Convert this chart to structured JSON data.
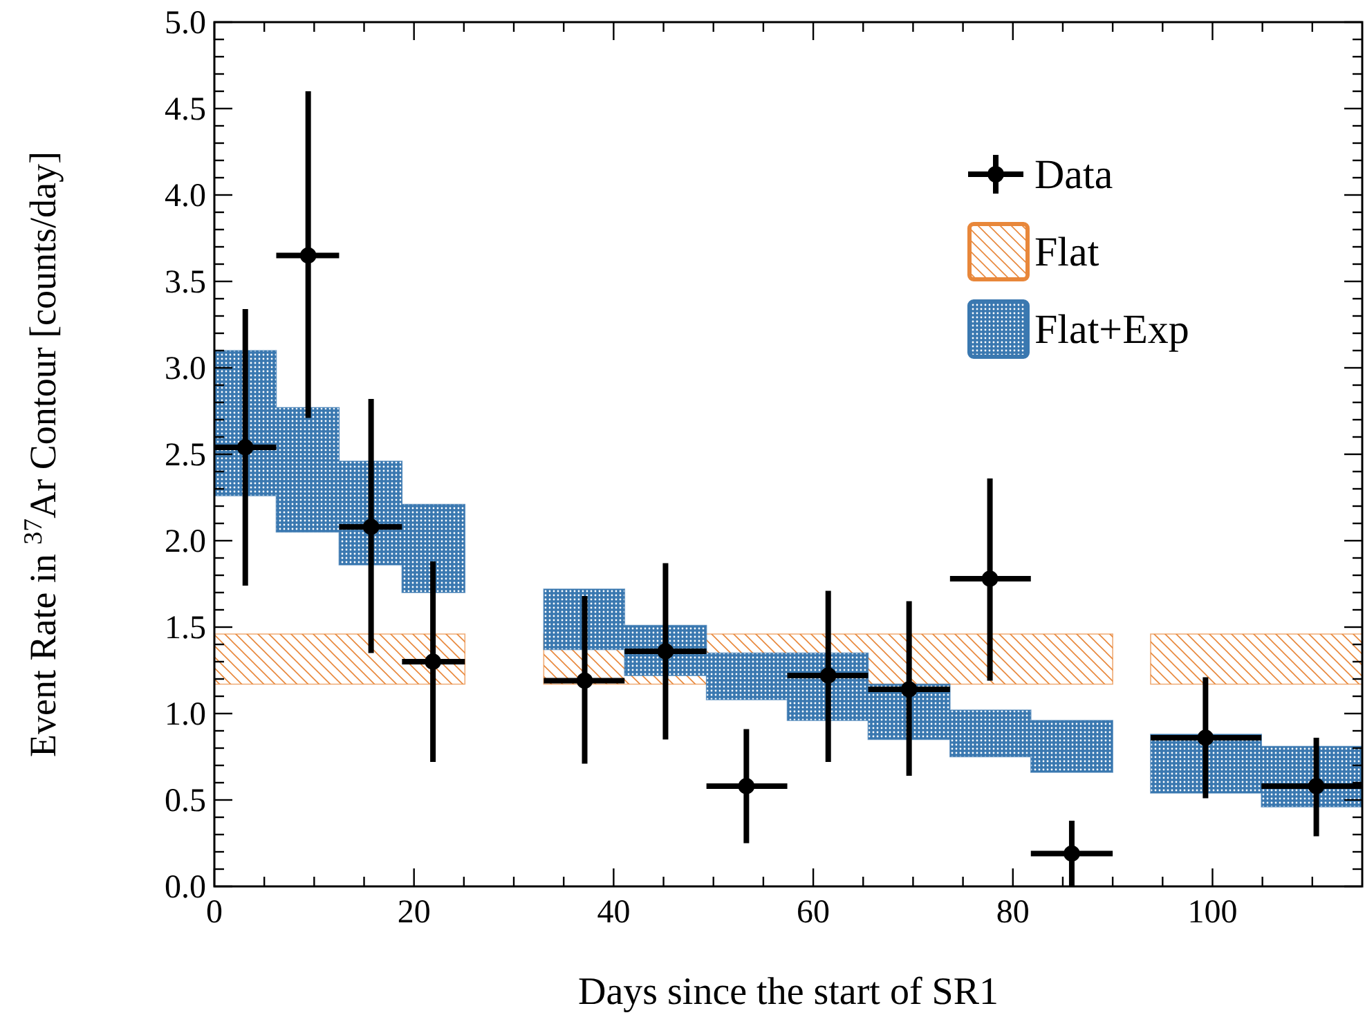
{
  "chart_data": {
    "type": "scatter",
    "xlabel": "Days since the start of SR1",
    "ylabel": "Event Rate in $^{37}$Ar Contour [counts/day]",
    "xlim": [
      0,
      115
    ],
    "ylim": [
      0,
      5
    ],
    "xticks": [
      0,
      {
        "value": 5,
        "label": null
      },
      {
        "value": 10,
        "label": null
      },
      {
        "value": 15,
        "label": null
      },
      20,
      {
        "value": 25,
        "label": null
      },
      {
        "value": 30,
        "label": null
      },
      {
        "value": 35,
        "label": null
      },
      40,
      {
        "value": 45,
        "label": null
      },
      {
        "value": 50,
        "label": null
      },
      {
        "value": 55,
        "label": null
      },
      60,
      {
        "value": 65,
        "label": null
      },
      {
        "value": 70,
        "label": null
      },
      {
        "value": 75,
        "label": null
      },
      80,
      {
        "value": 85,
        "label": null
      },
      {
        "value": 90,
        "label": null
      },
      {
        "value": 95,
        "label": null
      },
      100,
      {
        "value": 105,
        "label": null
      },
      {
        "value": 110,
        "label": null
      }
    ],
    "yticks": [
      {
        "value": 0,
        "label": "0.0"
      },
      {
        "value": 0.1,
        "label": null
      },
      {
        "value": 0.2,
        "label": null
      },
      {
        "value": 0.3,
        "label": null
      },
      {
        "value": 0.4,
        "label": null
      },
      0.5,
      {
        "value": 0.6,
        "label": null
      },
      {
        "value": 0.7,
        "label": null
      },
      {
        "value": 0.8,
        "label": null
      },
      {
        "value": 0.9,
        "label": null
      },
      {
        "value": 1,
        "label": "1.0"
      },
      {
        "value": 1.1,
        "label": null
      },
      {
        "value": 1.2,
        "label": null
      },
      {
        "value": 1.3,
        "label": null
      },
      {
        "value": 1.4,
        "label": null
      },
      1.5,
      {
        "value": 1.6,
        "label": null
      },
      {
        "value": 1.7,
        "label": null
      },
      {
        "value": 1.8,
        "label": null
      },
      {
        "value": 1.9,
        "label": null
      },
      {
        "value": 2,
        "label": "2.0"
      },
      {
        "value": 2.1,
        "label": null
      },
      {
        "value": 2.2,
        "label": null
      },
      {
        "value": 2.3,
        "label": null
      },
      {
        "value": 2.4,
        "label": null
      },
      2.5,
      {
        "value": 2.6,
        "label": null
      },
      {
        "value": 2.7,
        "label": null
      },
      {
        "value": 2.8,
        "label": null
      },
      {
        "value": 2.9,
        "label": null
      },
      {
        "value": 3,
        "label": "3.0"
      },
      {
        "value": 3.1,
        "label": null
      },
      {
        "value": 3.2,
        "label": null
      },
      {
        "value": 3.3,
        "label": null
      },
      {
        "value": 3.4,
        "label": null
      },
      3.5,
      {
        "value": 3.6,
        "label": null
      },
      {
        "value": 3.7,
        "label": null
      },
      {
        "value": 3.8,
        "label": null
      },
      {
        "value": 3.9,
        "label": null
      },
      {
        "value": 4,
        "label": "4.0"
      },
      {
        "value": 4.1,
        "label": null
      },
      {
        "value": 4.2,
        "label": null
      },
      {
        "value": 4.3,
        "label": null
      },
      {
        "value": 4.4,
        "label": null
      },
      4.5,
      {
        "value": 4.6,
        "label": null
      },
      {
        "value": 4.7,
        "label": null
      },
      {
        "value": 4.8,
        "label": null
      },
      {
        "value": 4.9,
        "label": null
      },
      {
        "value": 5,
        "label": "5.0"
      }
    ],
    "grid": false,
    "legend": "top right",
    "series": [
      {
        "name": "Flat",
        "type": "area",
        "color": "#e8873a",
        "x": [
          0,
          25.1,
          29,
          33,
          90,
          92,
          93.8,
          115
        ],
        "values": [
          null,
          null,
          null,
          null,
          null,
          null,
          null,
          null
        ],
        "lower": [
          1.17,
          1.17,
          null,
          1.17,
          1.17,
          null,
          1.17,
          1.17
        ],
        "upper": [
          1.46,
          1.46,
          null,
          1.46,
          1.46,
          null,
          1.46,
          1.46
        ]
      },
      {
        "name": "Flat+Exp",
        "type": "area",
        "color": "#3a78b0",
        "x": [
          0,
          6.2,
          6.2,
          12.5,
          12.5,
          18.8,
          18.8,
          25.1,
          29,
          33,
          41.1,
          41.1,
          49.3,
          49.3,
          57.4,
          57.4,
          65.5,
          65.5,
          73.7,
          73.7,
          81.8,
          81.8,
          90,
          92,
          93.8,
          104.9,
          104.9,
          115
        ],
        "lower": [
          2.26,
          2.26,
          2.05,
          2.05,
          1.86,
          1.86,
          1.7,
          1.7,
          null,
          1.37,
          1.37,
          1.22,
          1.22,
          1.08,
          1.08,
          0.96,
          0.96,
          0.85,
          0.85,
          0.75,
          0.75,
          0.66,
          0.66,
          null,
          0.54,
          0.54,
          0.46,
          0.46
        ],
        "values": [
          null,
          null,
          null,
          null,
          null,
          null,
          null,
          null,
          null,
          null,
          null,
          null,
          null,
          null,
          null,
          null,
          null,
          null,
          null,
          null,
          null,
          null,
          null,
          null,
          null,
          null,
          null,
          null
        ],
        "upper": [
          3.1,
          3.1,
          2.77,
          2.77,
          2.46,
          2.46,
          2.21,
          2.21,
          null,
          1.72,
          1.72,
          1.51,
          1.51,
          1.35,
          1.35,
          1.35,
          1.35,
          1.17,
          1.17,
          1.02,
          1.02,
          0.96,
          0.96,
          null,
          0.88,
          0.88,
          0.81,
          0.81
        ]
      },
      {
        "name": "Data",
        "type": "scatter",
        "marker": "circle",
        "color": "#000000",
        "x": [
          3.1,
          9.4,
          15.7,
          21.9,
          37.1,
          45.2,
          53.3,
          61.5,
          69.6,
          77.7,
          85.9,
          99.3,
          110.4
        ],
        "values": [
          2.54,
          3.65,
          2.08,
          1.3,
          1.19,
          1.36,
          0.58,
          1.22,
          1.14,
          1.78,
          0.19,
          0.86,
          0.58
        ],
        "errors": [
          [
            1.74,
            3.34
          ],
          [
            2.71,
            4.6
          ],
          [
            1.35,
            2.82
          ],
          [
            0.72,
            1.88
          ],
          [
            0.71,
            1.68
          ],
          [
            0.85,
            1.87
          ],
          [
            0.25,
            0.91
          ],
          [
            0.72,
            1.71
          ],
          [
            0.64,
            1.65
          ],
          [
            1.19,
            2.36
          ],
          [
            0,
            0.38
          ],
          [
            0.51,
            1.21
          ],
          [
            0.29,
            0.86
          ]
        ],
        "xerrors": [
          [
            0,
            6.2
          ],
          [
            6.2,
            12.5
          ],
          [
            12.5,
            18.8
          ],
          [
            18.8,
            25.1
          ],
          [
            33,
            41.1
          ],
          [
            41.1,
            49.3
          ],
          [
            49.3,
            57.4
          ],
          [
            57.4,
            65.5
          ],
          [
            65.5,
            73.7
          ],
          [
            73.7,
            81.8
          ],
          [
            81.8,
            90
          ],
          [
            93.8,
            104.9
          ],
          [
            104.9,
            115
          ]
        ]
      }
    ]
  }
}
